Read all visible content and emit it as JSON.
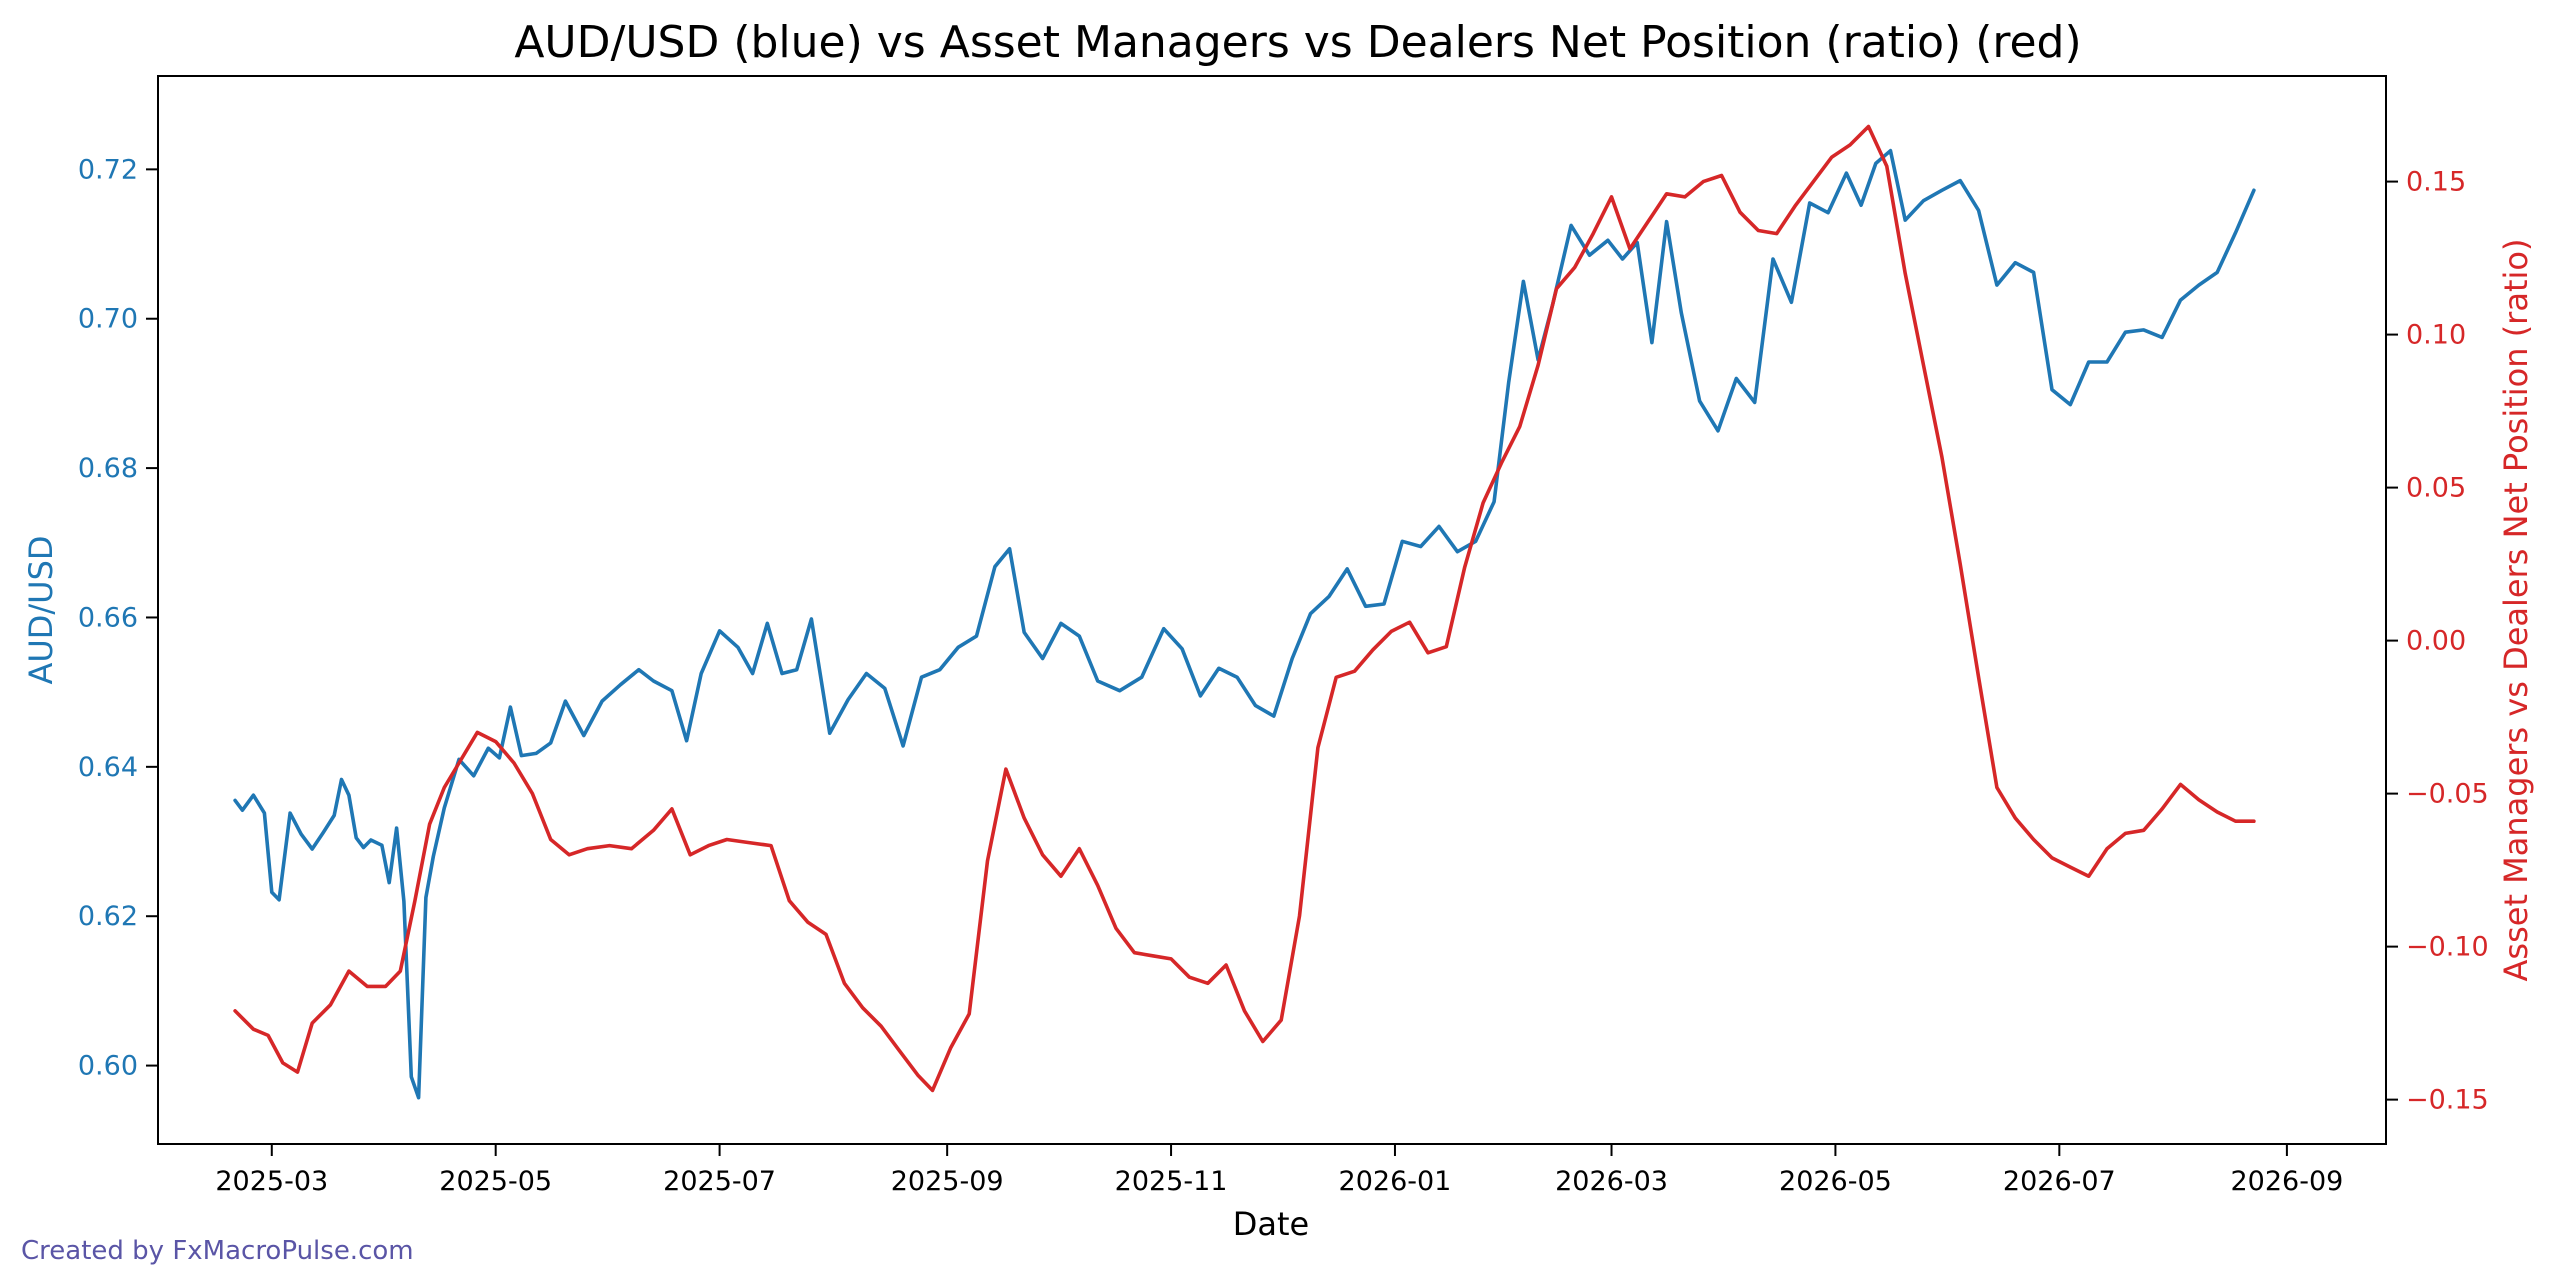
{
  "credit": "Created by FxMacroPulse.com",
  "chart_data": {
    "type": "line",
    "title": "AUD/USD (blue) vs Asset Managers vs Dealers Net Position (ratio) (red)",
    "xlabel": "Date",
    "ylabel_left": "AUD/USD",
    "ylabel_right": "Asset Managers vs Dealers Net Position (ratio)",
    "xlim": [
      "2025-01-29",
      "2026-09-28"
    ],
    "ylim_left": [
      0.5895,
      0.7325
    ],
    "ylim_right": [
      -0.1645,
      0.1845
    ],
    "x_ticks": [
      "2025-03",
      "2025-05",
      "2025-07",
      "2025-09",
      "2025-11",
      "2026-01",
      "2026-03",
      "2026-05",
      "2026-07",
      "2026-09"
    ],
    "y_ticks_left": [
      "0.60",
      "0.62",
      "0.64",
      "0.66",
      "0.68",
      "0.70",
      "0.72"
    ],
    "y_ticks_right": [
      "−0.15",
      "−0.10",
      "−0.05",
      "0.00",
      "0.05",
      "0.10",
      "0.15"
    ],
    "grid": false,
    "series": [
      {
        "name": "AUD/USD",
        "axis": "left",
        "color": "#1f77b4",
        "x": [
          "2025-02-19",
          "2025-02-21",
          "2025-02-24",
          "2025-02-27",
          "2025-03-01",
          "2025-03-03",
          "2025-03-06",
          "2025-03-09",
          "2025-03-12",
          "2025-03-15",
          "2025-03-18",
          "2025-03-20",
          "2025-03-22",
          "2025-03-24",
          "2025-03-26",
          "2025-03-28",
          "2025-03-31",
          "2025-04-02",
          "2025-04-04",
          "2025-04-06",
          "2025-04-08",
          "2025-04-10",
          "2025-04-12",
          "2025-04-14",
          "2025-04-17",
          "2025-04-21",
          "2025-04-25",
          "2025-04-29",
          "2025-05-02",
          "2025-05-05",
          "2025-05-08",
          "2025-05-12",
          "2025-05-16",
          "2025-05-20",
          "2025-05-25",
          "2025-05-30",
          "2025-06-04",
          "2025-06-09",
          "2025-06-13",
          "2025-06-18",
          "2025-06-22",
          "2025-06-26",
          "2025-07-01",
          "2025-07-06",
          "2025-07-10",
          "2025-07-14",
          "2025-07-18",
          "2025-07-22",
          "2025-07-26",
          "2025-07-31",
          "2025-08-05",
          "2025-08-10",
          "2025-08-15",
          "2025-08-20",
          "2025-08-25",
          "2025-08-30",
          "2025-09-04",
          "2025-09-09",
          "2025-09-14",
          "2025-09-18",
          "2025-09-22",
          "2025-09-27",
          "2025-10-02",
          "2025-10-07",
          "2025-10-12",
          "2025-10-18",
          "2025-10-24",
          "2025-10-30",
          "2025-11-04",
          "2025-11-09",
          "2025-11-14",
          "2025-11-19",
          "2025-11-24",
          "2025-11-29",
          "2025-12-04",
          "2025-12-09",
          "2025-12-14",
          "2025-12-19",
          "2025-12-24",
          "2025-12-29",
          "2026-01-03",
          "2026-01-08",
          "2026-01-13",
          "2026-01-18",
          "2026-01-23",
          "2026-01-28",
          "2026-02-01",
          "2026-02-05",
          "2026-02-09",
          "2026-02-13",
          "2026-02-18",
          "2026-02-23",
          "2026-02-28",
          "2026-03-04",
          "2026-03-08",
          "2026-03-12",
          "2026-03-16",
          "2026-03-20",
          "2026-03-25",
          "2026-03-30",
          "2026-04-04",
          "2026-04-09",
          "2026-04-14",
          "2026-04-19",
          "2026-04-24",
          "2026-04-29",
          "2026-05-04",
          "2026-05-08",
          "2026-05-12",
          "2026-05-16",
          "2026-05-20",
          "2026-05-25",
          "2026-05-30",
          "2026-06-04",
          "2026-06-09",
          "2026-06-14",
          "2026-06-19",
          "2026-06-24",
          "2026-06-29",
          "2026-07-04",
          "2026-07-09",
          "2026-07-14",
          "2026-07-19",
          "2026-07-24",
          "2026-07-29",
          "2026-08-03",
          "2026-08-08",
          "2026-08-13",
          "2026-08-18",
          "2026-08-23"
        ],
        "y": [
          0.6355,
          0.6342,
          0.6362,
          0.6338,
          0.6232,
          0.6222,
          0.6338,
          0.631,
          0.629,
          0.6312,
          0.6335,
          0.6383,
          0.6362,
          0.6305,
          0.6292,
          0.6302,
          0.6295,
          0.6245,
          0.6318,
          0.622,
          0.5985,
          0.5957,
          0.6225,
          0.628,
          0.6345,
          0.641,
          0.6388,
          0.6425,
          0.6412,
          0.648,
          0.6415,
          0.6418,
          0.6432,
          0.6488,
          0.6442,
          0.6488,
          0.651,
          0.653,
          0.6515,
          0.6502,
          0.6435,
          0.6525,
          0.6582,
          0.656,
          0.6525,
          0.6592,
          0.6525,
          0.653,
          0.6598,
          0.6445,
          0.649,
          0.6525,
          0.6505,
          0.6428,
          0.652,
          0.653,
          0.656,
          0.6575,
          0.6668,
          0.6692,
          0.658,
          0.6545,
          0.6592,
          0.6575,
          0.6515,
          0.6502,
          0.652,
          0.6585,
          0.6558,
          0.6495,
          0.6532,
          0.652,
          0.6482,
          0.6468,
          0.6545,
          0.6605,
          0.6628,
          0.6665,
          0.6615,
          0.6618,
          0.6702,
          0.6695,
          0.6722,
          0.6688,
          0.6702,
          0.6755,
          0.6915,
          0.705,
          0.6945,
          0.702,
          0.7125,
          0.7085,
          0.7105,
          0.708,
          0.7102,
          0.6968,
          0.713,
          0.7008,
          0.689,
          0.685,
          0.692,
          0.6888,
          0.708,
          0.7022,
          0.7155,
          0.7142,
          0.7195,
          0.7152,
          0.7208,
          0.7225,
          0.7132,
          0.7158,
          0.7172,
          0.7185,
          0.7145,
          0.7045,
          0.7075,
          0.7062,
          0.6905,
          0.6885,
          0.6942,
          0.6942,
          0.6982,
          0.6985,
          0.6975,
          0.7025,
          0.7045,
          0.7062,
          0.7115,
          0.7172
        ]
      },
      {
        "name": "Asset Managers vs Dealers Net Position (ratio)",
        "axis": "right",
        "color": "#d62728",
        "x": [
          "2025-02-19",
          "2025-02-24",
          "2025-02-28",
          "2025-03-04",
          "2025-03-08",
          "2025-03-12",
          "2025-03-17",
          "2025-03-22",
          "2025-03-27",
          "2025-04-01",
          "2025-04-05",
          "2025-04-09",
          "2025-04-13",
          "2025-04-17",
          "2025-04-21",
          "2025-04-26",
          "2025-05-01",
          "2025-05-06",
          "2025-05-11",
          "2025-05-16",
          "2025-05-21",
          "2025-05-26",
          "2025-06-01",
          "2025-06-07",
          "2025-06-13",
          "2025-06-18",
          "2025-06-23",
          "2025-06-28",
          "2025-07-03",
          "2025-07-09",
          "2025-07-15",
          "2025-07-20",
          "2025-07-25",
          "2025-07-30",
          "2025-08-04",
          "2025-08-09",
          "2025-08-14",
          "2025-08-19",
          "2025-08-24",
          "2025-08-28",
          "2025-09-02",
          "2025-09-07",
          "2025-09-12",
          "2025-09-17",
          "2025-09-22",
          "2025-09-27",
          "2025-10-02",
          "2025-10-07",
          "2025-10-12",
          "2025-10-17",
          "2025-10-22",
          "2025-10-27",
          "2025-11-01",
          "2025-11-06",
          "2025-11-11",
          "2025-11-16",
          "2025-11-21",
          "2025-11-26",
          "2025-12-01",
          "2025-12-06",
          "2025-12-11",
          "2025-12-16",
          "2025-12-21",
          "2025-12-26",
          "2025-12-31",
          "2026-01-05",
          "2026-01-10",
          "2026-01-15",
          "2026-01-20",
          "2026-01-25",
          "2026-01-30",
          "2026-02-04",
          "2026-02-09",
          "2026-02-14",
          "2026-02-19",
          "2026-02-24",
          "2026-03-01",
          "2026-03-06",
          "2026-03-11",
          "2026-03-16",
          "2026-03-21",
          "2026-03-26",
          "2026-03-31",
          "2026-04-05",
          "2026-04-10",
          "2026-04-15",
          "2026-04-20",
          "2026-04-25",
          "2026-04-30",
          "2026-05-05",
          "2026-05-10",
          "2026-05-15",
          "2026-05-20",
          "2026-05-25",
          "2026-05-30",
          "2026-06-04",
          "2026-06-09",
          "2026-06-14",
          "2026-06-19",
          "2026-06-24",
          "2026-06-29",
          "2026-07-04",
          "2026-07-09",
          "2026-07-14",
          "2026-07-19",
          "2026-07-24",
          "2026-07-29",
          "2026-08-03",
          "2026-08-08",
          "2026-08-13",
          "2026-08-18",
          "2026-08-23"
        ],
        "y": [
          -0.121,
          -0.127,
          -0.129,
          -0.138,
          -0.141,
          -0.125,
          -0.119,
          -0.108,
          -0.113,
          -0.113,
          -0.108,
          -0.085,
          -0.06,
          -0.048,
          -0.04,
          -0.03,
          -0.033,
          -0.04,
          -0.05,
          -0.065,
          -0.07,
          -0.068,
          -0.067,
          -0.068,
          -0.062,
          -0.055,
          -0.07,
          -0.067,
          -0.065,
          -0.066,
          -0.067,
          -0.085,
          -0.092,
          -0.096,
          -0.112,
          -0.12,
          -0.126,
          -0.134,
          -0.142,
          -0.147,
          -0.133,
          -0.122,
          -0.072,
          -0.042,
          -0.058,
          -0.07,
          -0.077,
          -0.068,
          -0.08,
          -0.094,
          -0.102,
          -0.103,
          -0.104,
          -0.11,
          -0.112,
          -0.106,
          -0.121,
          -0.131,
          -0.124,
          -0.09,
          -0.035,
          -0.012,
          -0.01,
          -0.003,
          0.003,
          0.006,
          -0.004,
          -0.002,
          0.024,
          0.045,
          0.058,
          0.07,
          0.09,
          0.115,
          0.122,
          0.133,
          0.145,
          0.128,
          0.137,
          0.146,
          0.145,
          0.15,
          0.152,
          0.14,
          0.134,
          0.133,
          0.142,
          0.15,
          0.158,
          0.162,
          0.168,
          0.155,
          0.12,
          0.09,
          0.06,
          0.025,
          -0.012,
          -0.048,
          -0.058,
          -0.065,
          -0.071,
          -0.074,
          -0.077,
          -0.068,
          -0.063,
          -0.062,
          -0.055,
          -0.047,
          -0.052,
          -0.056,
          -0.059,
          -0.059
        ]
      }
    ]
  }
}
